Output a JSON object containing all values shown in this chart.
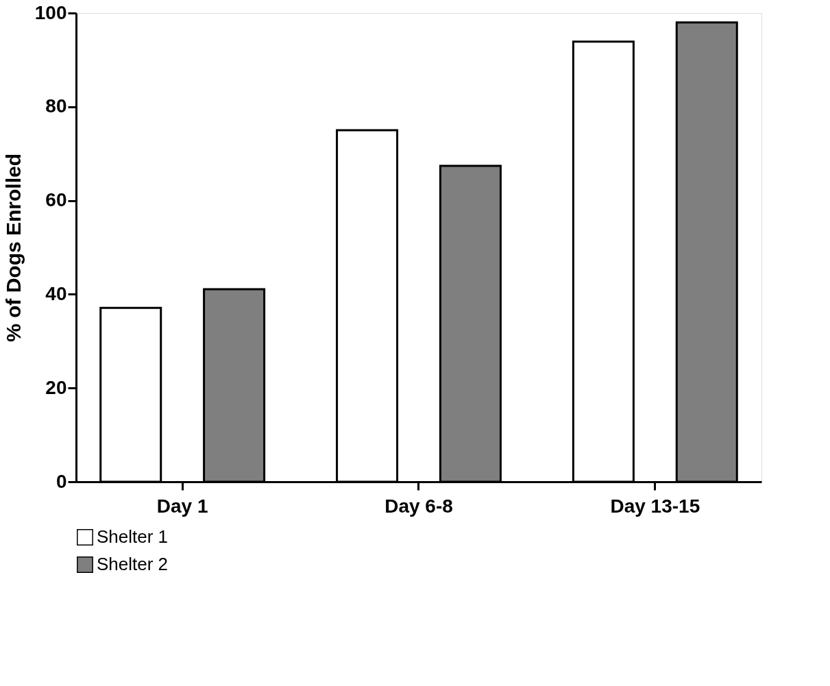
{
  "chart_data": {
    "type": "bar",
    "ylabel": "% of Dogs Enrolled",
    "categories": [
      "Day 1",
      "Day 6-8",
      "Day 13-15"
    ],
    "series": [
      {
        "name": "Shelter 1",
        "color": "#ffffff",
        "values": [
          37.1,
          75.0,
          93.9
        ]
      },
      {
        "name": "Shelter 2",
        "color": "#7f7f7f",
        "values": [
          41.1,
          67.4,
          98.0
        ]
      }
    ],
    "ylim": [
      0,
      100
    ],
    "yticks": [
      0,
      20,
      40,
      60,
      80,
      100
    ],
    "grid": false,
    "legend": "bottom"
  }
}
